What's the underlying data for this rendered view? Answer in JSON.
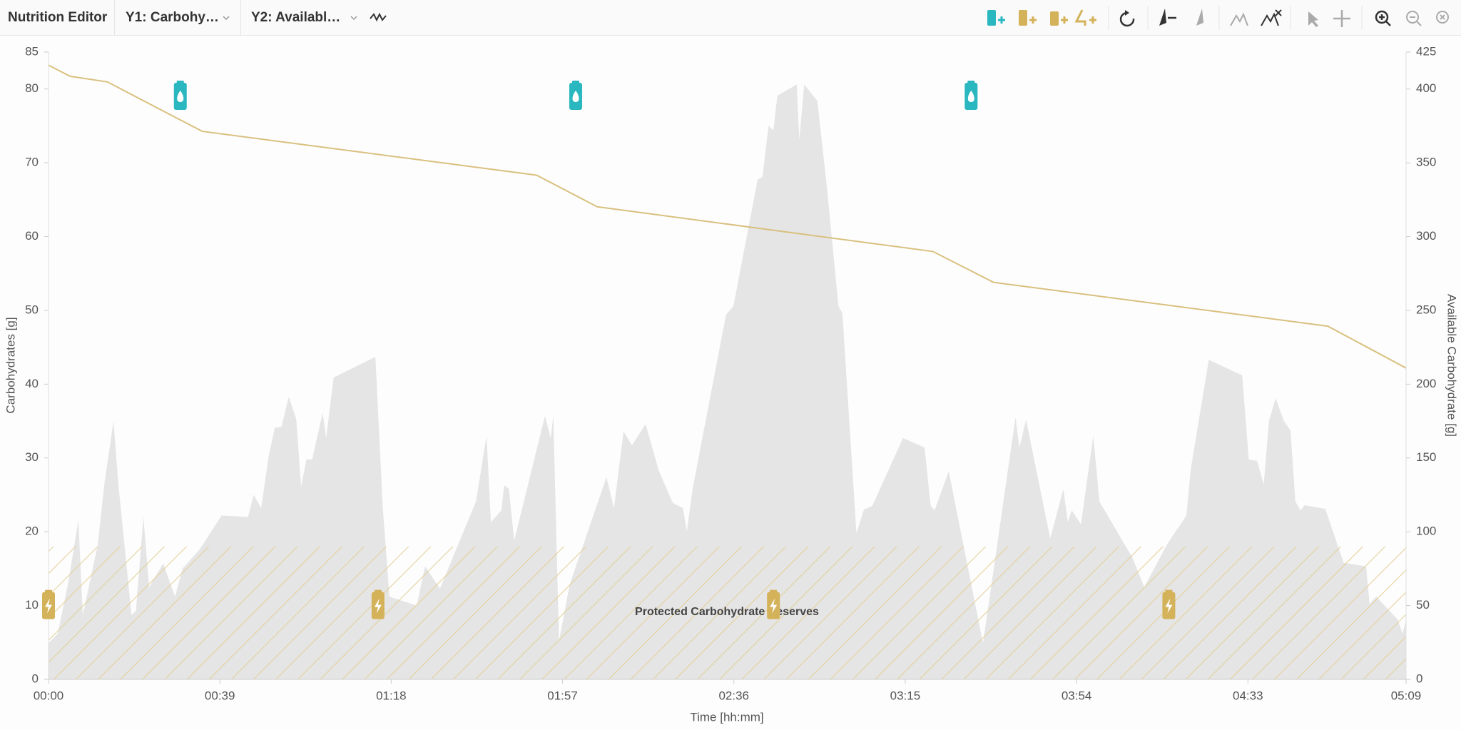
{
  "toolbar": {
    "title": "Nutrition Editor",
    "y1_select": "Y1: Carbohy…",
    "y2_select": "Y2: Availabl…"
  },
  "chart_data": {
    "type": "area_line",
    "y_label": "Carbohydrates [g]",
    "y2_label": "Available Carbohydrate [g]",
    "x_label": "Time [hh:mm]",
    "xlim": [
      0,
      309
    ],
    "xticks": [
      {
        "value": 0,
        "label": "00:00"
      },
      {
        "value": 39,
        "label": "00:39"
      },
      {
        "value": 78,
        "label": "01:18"
      },
      {
        "value": 117,
        "label": "01:57"
      },
      {
        "value": 156,
        "label": "02:36"
      },
      {
        "value": 195,
        "label": "03:15"
      },
      {
        "value": 234,
        "label": "03:54"
      },
      {
        "value": 273,
        "label": "04:33"
      },
      {
        "value": 309,
        "label": "05:09"
      }
    ],
    "ylim": [
      0,
      85
    ],
    "yticks": [
      0,
      10,
      20,
      30,
      40,
      50,
      60,
      70,
      80,
      85
    ],
    "y2lim": [
      0,
      425
    ],
    "y2ticks": [
      0,
      50,
      100,
      150,
      200,
      250,
      300,
      350,
      400,
      425
    ],
    "series": [
      {
        "type": "area",
        "color": "#e5e5e5",
        "x": [
          0,
          2.1,
          4.5,
          6.8,
          7.8,
          11.2,
          12.7,
          14.8,
          15.9,
          18.9,
          19.9,
          21.6,
          22.9,
          26.1,
          28.8,
          30.5,
          34.4,
          39.4,
          45.4,
          46.7,
          48.4,
          50.1,
          51.5,
          53.0,
          54.7,
          56.4,
          57.5,
          58.7,
          60.0,
          62.4,
          63.2,
          64.9,
          74.4,
          76.1,
          77.6,
          83.8,
          85.7,
          89.1,
          97.3,
          99.7,
          100.7,
          103.1,
          103.7,
          104.8,
          106.0,
          113.0,
          114.3,
          114.9,
          116.2,
          118.6,
          127.0,
          128.7,
          130.9,
          132.8,
          135.9,
          138.9,
          142.1,
          144.4,
          145.3,
          146.6,
          154.2,
          155.9,
          161.4,
          162.5,
          163.9,
          165.0,
          165.9,
          170.3,
          170.9,
          172.0,
          175.0,
          177.1,
          179.8,
          180.7,
          183.9,
          185.6,
          187.5,
          194.5,
          199.4,
          200.8,
          201.7,
          204.9,
          212.7,
          214.4,
          220.1,
          221.0,
          222.5,
          228.0,
          231.0,
          232.0,
          232.9,
          235.0,
          237.8,
          239.2,
          246.7,
          249.4,
          254.7,
          259.0,
          260.0,
          264.1,
          271.7,
          273.2,
          275.1,
          276.6,
          277.8,
          279.3,
          281.2,
          282.7,
          283.8,
          285.0,
          285.9,
          290.6,
          294.8,
          299.9,
          300.7,
          302.2,
          307.1,
          308.2,
          309
        ],
        "values": [
          4.9,
          6.2,
          13.1,
          21.6,
          8.7,
          18.2,
          26.4,
          35.0,
          26.4,
          8.7,
          9.3,
          22.0,
          12.5,
          15.7,
          11.2,
          15.0,
          17.6,
          22.2,
          22.0,
          25.0,
          23.2,
          30.2,
          34.1,
          34.2,
          38.3,
          35.2,
          26.1,
          29.8,
          29.8,
          36.1,
          32.7,
          40.9,
          43.7,
          23.2,
          11.2,
          10.0,
          15.3,
          12.3,
          24.1,
          33.0,
          21.3,
          22.9,
          26.3,
          25.8,
          18.8,
          35.7,
          32.7,
          35.7,
          5.2,
          12.8,
          27.4,
          23.2,
          33.6,
          31.7,
          34.6,
          28.3,
          23.9,
          23.2,
          20.1,
          25.8,
          49.4,
          50.6,
          67.7,
          68.1,
          75.0,
          74.4,
          79.1,
          80.6,
          73.1,
          80.6,
          78.4,
          67.1,
          50.6,
          49.6,
          19.8,
          23.0,
          23.5,
          32.7,
          31.4,
          23.5,
          22.9,
          28.2,
          4.9,
          11.9,
          35.5,
          31.4,
          35.2,
          19.1,
          25.8,
          21.3,
          22.9,
          21.0,
          33.0,
          24.1,
          16.5,
          12.5,
          18.4,
          22.2,
          28.5,
          43.3,
          41.2,
          29.8,
          29.6,
          26.4,
          35.0,
          38.1,
          35.0,
          33.7,
          24.1,
          22.9,
          23.6,
          23.1,
          15.8,
          15.3,
          10.2,
          11.2,
          8.1,
          6.2,
          8.1
        ]
      },
      {
        "type": "line",
        "axis": "y2",
        "color": "#d9c07f",
        "x": [
          0,
          4.9,
          13.4,
          35.0,
          111.1,
          124.9,
          201.3,
          215.1,
          291.2,
          309
        ],
        "values": [
          416.2,
          408.6,
          404.8,
          371.3,
          341.6,
          320.2,
          289.9,
          269.0,
          239.3,
          210.9
        ]
      }
    ],
    "protected_reserve": {
      "label": "Protected Carbohydrate Reserves",
      "value": 18,
      "color": "#e2cf94"
    },
    "drink_markers": {
      "color": "#2ab7c0",
      "x": [
        30,
        120,
        210
      ],
      "y": [
        79,
        79,
        79
      ]
    },
    "gel_markers": {
      "color": "#d4b25a",
      "x": [
        0,
        75,
        165,
        255
      ],
      "y": [
        10,
        10,
        10,
        10
      ]
    }
  }
}
